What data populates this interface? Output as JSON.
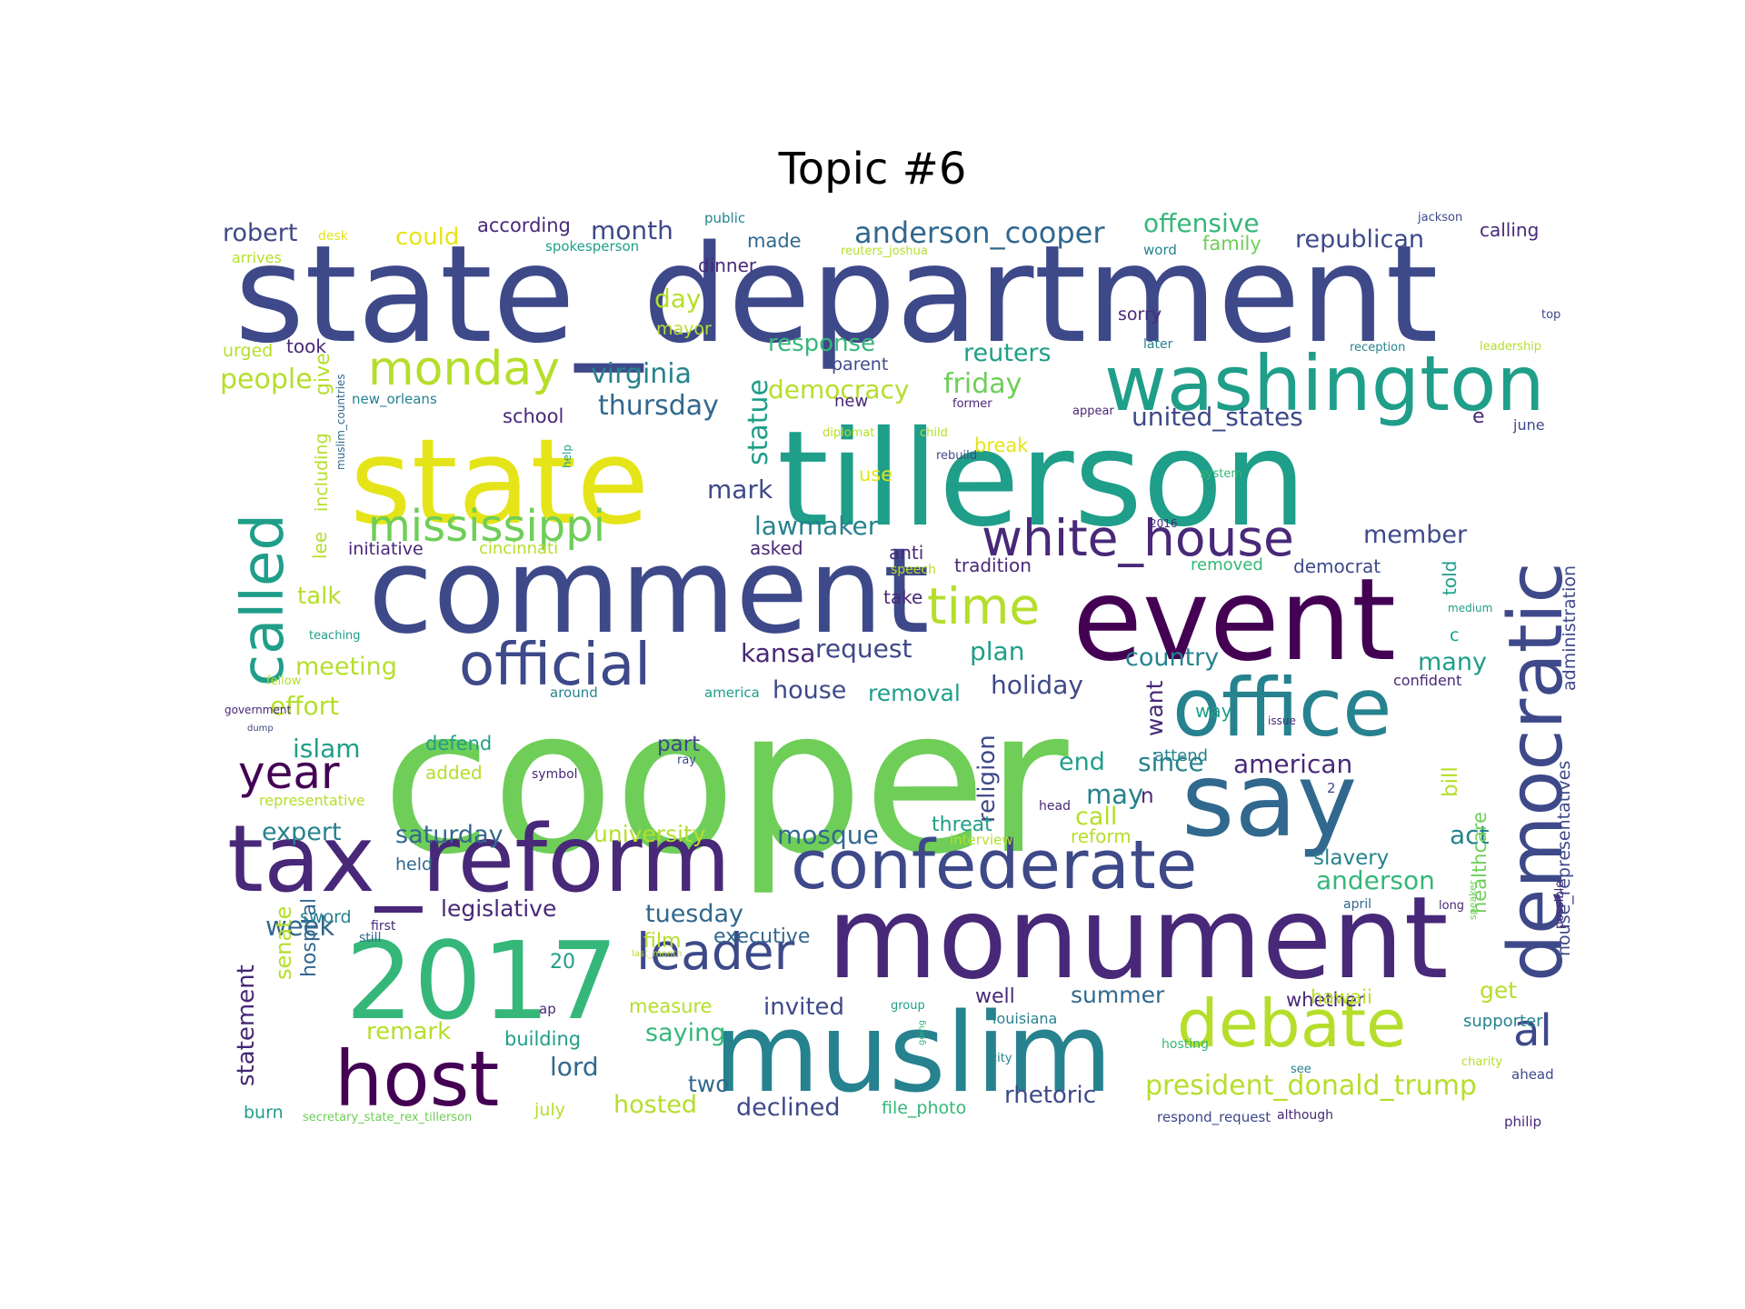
{
  "title": "Topic #6",
  "palette": {
    "darkpurple": "#440154",
    "purple": "#482878",
    "indigo": "#3e4989",
    "blue": "#31688e",
    "teal": "#26828e",
    "seagreen": "#1f9e89",
    "green": "#35b779",
    "lightgreen": "#6ece58",
    "lime": "#b5de2b",
    "yellow": "#e5e419"
  },
  "words": [
    {
      "text": "state_department",
      "color": "#3e4989"
    },
    {
      "text": "cooper",
      "color": "#6ece58"
    },
    {
      "text": "tillerson",
      "color": "#1f9e89"
    },
    {
      "text": "state",
      "color": "#e5e419"
    },
    {
      "text": "comment",
      "color": "#3e4989"
    },
    {
      "text": "event",
      "color": "#440154"
    },
    {
      "text": "monument",
      "color": "#482878"
    },
    {
      "text": "muslim",
      "color": "#26828e"
    },
    {
      "text": "2017",
      "color": "#35b779"
    },
    {
      "text": "tax_reform",
      "color": "#482878"
    },
    {
      "text": "say",
      "color": "#31688e"
    },
    {
      "text": "office",
      "color": "#26828e"
    },
    {
      "text": "washington",
      "color": "#1f9e89"
    },
    {
      "text": "democratic",
      "color": "#3e4989"
    },
    {
      "text": "called",
      "color": "#1f9e89"
    },
    {
      "text": "confederate",
      "color": "#3e4989"
    },
    {
      "text": "debate",
      "color": "#b5de2b"
    },
    {
      "text": "host",
      "color": "#440154"
    },
    {
      "text": "official",
      "color": "#3e4989"
    },
    {
      "text": "white_house",
      "color": "#482878"
    },
    {
      "text": "mississippi",
      "color": "#6ece58"
    },
    {
      "text": "monday",
      "color": "#b5de2b"
    },
    {
      "text": "time",
      "color": "#b5de2b"
    },
    {
      "text": "leader",
      "color": "#3e4989"
    },
    {
      "text": "year",
      "color": "#440154"
    },
    {
      "text": "anderson_cooper",
      "color": "#31688e"
    },
    {
      "text": "al",
      "color": "#3e4989"
    },
    {
      "text": "president_donald_trump",
      "color": "#b5de2b"
    },
    {
      "text": "republican",
      "color": "#3e4989"
    },
    {
      "text": "offensive",
      "color": "#35b779"
    },
    {
      "text": "virginia",
      "color": "#26828e"
    },
    {
      "text": "thursday",
      "color": "#31688e"
    },
    {
      "text": "united_states",
      "color": "#3e4989"
    },
    {
      "text": "friday",
      "color": "#6ece58"
    },
    {
      "text": "democracy",
      "color": "#b5de2b"
    },
    {
      "text": "reuters",
      "color": "#1f9e89"
    },
    {
      "text": "response",
      "color": "#35b779"
    },
    {
      "text": "people",
      "color": "#b5de2b"
    },
    {
      "text": "month",
      "color": "#3e4989"
    },
    {
      "text": "made",
      "color": "#31688e"
    },
    {
      "text": "day",
      "color": "#b5de2b"
    },
    {
      "text": "robert",
      "color": "#3e4989"
    },
    {
      "text": "could",
      "color": "#e5e419"
    },
    {
      "text": "according",
      "color": "#482878"
    },
    {
      "text": "family",
      "color": "#6ece58"
    },
    {
      "text": "calling",
      "color": "#482878"
    },
    {
      "text": "statue",
      "color": "#1f9e89"
    },
    {
      "text": "lawmaker",
      "color": "#26828e"
    },
    {
      "text": "mark",
      "color": "#3e4989"
    },
    {
      "text": "member",
      "color": "#3e4989"
    },
    {
      "text": "plan",
      "color": "#1f9e89"
    },
    {
      "text": "request",
      "color": "#3e4989"
    },
    {
      "text": "kansa",
      "color": "#482878"
    },
    {
      "text": "country",
      "color": "#26828e"
    },
    {
      "text": "many",
      "color": "#1f9e89"
    },
    {
      "text": "holiday",
      "color": "#3e4989"
    },
    {
      "text": "house",
      "color": "#3e4989"
    },
    {
      "text": "removal",
      "color": "#1f9e89"
    },
    {
      "text": "meeting",
      "color": "#b5de2b"
    },
    {
      "text": "effort",
      "color": "#b5de2b"
    },
    {
      "text": "talk",
      "color": "#b5de2b"
    },
    {
      "text": "islam",
      "color": "#1f9e89"
    },
    {
      "text": "end",
      "color": "#1f9e89"
    },
    {
      "text": "since",
      "color": "#26828e"
    },
    {
      "text": "american",
      "color": "#482878"
    },
    {
      "text": "may",
      "color": "#26828e"
    },
    {
      "text": "expert",
      "color": "#26828e"
    },
    {
      "text": "saturday",
      "color": "#31688e"
    },
    {
      "text": "university",
      "color": "#b5de2b"
    },
    {
      "text": "mosque",
      "color": "#31688e"
    },
    {
      "text": "act",
      "color": "#26828e"
    },
    {
      "text": "anderson",
      "color": "#35b779"
    },
    {
      "text": "tuesday",
      "color": "#31688e"
    },
    {
      "text": "legislative",
      "color": "#482878"
    },
    {
      "text": "week",
      "color": "#31688e"
    },
    {
      "text": "executive",
      "color": "#31688e"
    },
    {
      "text": "summer",
      "color": "#31688e"
    },
    {
      "text": "invited",
      "color": "#3e4989"
    },
    {
      "text": "saying",
      "color": "#35b779"
    },
    {
      "text": "remark",
      "color": "#b5de2b"
    },
    {
      "text": "lord",
      "color": "#31688e"
    },
    {
      "text": "two",
      "color": "#31688e"
    },
    {
      "text": "hosted",
      "color": "#b5de2b"
    },
    {
      "text": "declined",
      "color": "#3e4989"
    },
    {
      "text": "rhetoric",
      "color": "#3e4989"
    },
    {
      "text": "get",
      "color": "#b5de2b"
    },
    {
      "text": "whether",
      "color": "#482878"
    },
    {
      "text": "religion",
      "color": "#3e4989"
    },
    {
      "text": "statement",
      "color": "#482878"
    },
    {
      "text": "senate",
      "color": "#b5de2b"
    },
    {
      "text": "hospital",
      "color": "#31688e"
    },
    {
      "text": "healthcare",
      "color": "#6ece58"
    },
    {
      "text": "house_representatives",
      "color": "#3e4989"
    },
    {
      "text": "administration",
      "color": "#3e4989"
    },
    {
      "text": "want",
      "color": "#482878"
    },
    {
      "text": "bill",
      "color": "#b5de2b"
    },
    {
      "text": "told",
      "color": "#1f9e89"
    },
    {
      "text": "lee",
      "color": "#b5de2b"
    },
    {
      "text": "including",
      "color": "#b5de2b"
    },
    {
      "text": "give",
      "color": "#b5de2b"
    },
    {
      "text": "initiative",
      "color": "#482878"
    },
    {
      "text": "cincinnati",
      "color": "#b5de2b"
    },
    {
      "text": "asked",
      "color": "#482878"
    },
    {
      "text": "anti",
      "color": "#482878"
    },
    {
      "text": "tradition",
      "color": "#482878"
    },
    {
      "text": "democrat",
      "color": "#3e4989"
    },
    {
      "text": "removed",
      "color": "#35b779"
    },
    {
      "text": "take",
      "color": "#482878"
    },
    {
      "text": "speech",
      "color": "#b5de2b"
    },
    {
      "text": "break",
      "color": "#e5e419"
    },
    {
      "text": "use",
      "color": "#e5e419"
    },
    {
      "text": "new_orleans",
      "color": "#26828e"
    },
    {
      "text": "school",
      "color": "#482878"
    },
    {
      "text": "new",
      "color": "#482878"
    },
    {
      "text": "parent",
      "color": "#3e4989"
    },
    {
      "text": "mayor",
      "color": "#b5de2b"
    },
    {
      "text": "took",
      "color": "#482878"
    },
    {
      "text": "urged",
      "color": "#b5de2b"
    },
    {
      "text": "sorry",
      "color": "#482878"
    },
    {
      "text": "dinner",
      "color": "#482878"
    },
    {
      "text": "spokesperson",
      "color": "#1f9e89"
    },
    {
      "text": "public",
      "color": "#26828e"
    },
    {
      "text": "word",
      "color": "#26828e"
    },
    {
      "text": "later",
      "color": "#26828e"
    },
    {
      "text": "e",
      "color": "#482878"
    },
    {
      "text": "call",
      "color": "#b5de2b"
    },
    {
      "text": "n",
      "color": "#482878"
    },
    {
      "text": "reform",
      "color": "#b5de2b"
    },
    {
      "text": "threat",
      "color": "#1f9e89"
    },
    {
      "text": "part",
      "color": "#3e4989"
    },
    {
      "text": "defend",
      "color": "#1f9e89"
    },
    {
      "text": "added",
      "color": "#b5de2b"
    },
    {
      "text": "attend",
      "color": "#26828e"
    },
    {
      "text": "way",
      "color": "#1f9e89"
    },
    {
      "text": "held",
      "color": "#31688e"
    },
    {
      "text": "sword",
      "color": "#26828e"
    },
    {
      "text": "film",
      "color": "#b5de2b"
    },
    {
      "text": "20",
      "color": "#1f9e89"
    },
    {
      "text": "measure",
      "color": "#b5de2b"
    },
    {
      "text": "building",
      "color": "#1f9e89"
    },
    {
      "text": "hawaii",
      "color": "#b5de2b"
    },
    {
      "text": "slavery",
      "color": "#26828e"
    },
    {
      "text": "well",
      "color": "#482878"
    },
    {
      "text": "louisiana",
      "color": "#26828e"
    },
    {
      "text": "hosting",
      "color": "#35b779"
    },
    {
      "text": "supporter",
      "color": "#26828e"
    },
    {
      "text": "burn",
      "color": "#1f9e89"
    },
    {
      "text": "july",
      "color": "#b5de2b"
    },
    {
      "text": "file_photo",
      "color": "#35b779"
    },
    {
      "text": "respond_request",
      "color": "#3e4989"
    },
    {
      "text": "although",
      "color": "#482878"
    },
    {
      "text": "philip",
      "color": "#482878"
    },
    {
      "text": "ahead",
      "color": "#3e4989"
    },
    {
      "text": "charity",
      "color": "#b5de2b"
    },
    {
      "text": "see",
      "color": "#26828e"
    },
    {
      "text": "city",
      "color": "#26828e"
    },
    {
      "text": "going",
      "color": "#35b779"
    },
    {
      "text": "group",
      "color": "#1f9e89"
    },
    {
      "text": "still",
      "color": "#31688e"
    },
    {
      "text": "ap",
      "color": "#482878"
    },
    {
      "text": "secretary_state_rex_tillerson",
      "color": "#6ece58"
    },
    {
      "text": "first",
      "color": "#482878"
    },
    {
      "text": "last_month",
      "color": "#b5de2b"
    },
    {
      "text": "possible",
      "color": "#482878"
    },
    {
      "text": "medium",
      "color": "#1f9e89"
    },
    {
      "text": "speaker",
      "color": "#6ece58"
    },
    {
      "text": "long",
      "color": "#482878"
    },
    {
      "text": "april",
      "color": "#31688e"
    },
    {
      "text": "confident",
      "color": "#482878"
    },
    {
      "text": "issue",
      "color": "#482878"
    },
    {
      "text": "2016",
      "color": "#482878"
    },
    {
      "text": "system",
      "color": "#35b779"
    },
    {
      "text": "c",
      "color": "#1f9e89"
    },
    {
      "text": "june",
      "color": "#3e4989"
    },
    {
      "text": "appear",
      "color": "#482878"
    },
    {
      "text": "former",
      "color": "#482878"
    },
    {
      "text": "rebuild",
      "color": "#3e4989"
    },
    {
      "text": "child",
      "color": "#b5de2b"
    },
    {
      "text": "diplomat",
      "color": "#b5de2b"
    },
    {
      "text": "help",
      "color": "#1f9e89"
    },
    {
      "text": "reception",
      "color": "#26828e"
    },
    {
      "text": "leadership",
      "color": "#b5de2b"
    },
    {
      "text": "top",
      "color": "#3e4989"
    },
    {
      "text": "jackson",
      "color": "#3e4989"
    },
    {
      "text": "reuters_joshua",
      "color": "#b5de2b"
    },
    {
      "text": "desk",
      "color": "#e5e419"
    },
    {
      "text": "arrives",
      "color": "#b5de2b"
    },
    {
      "text": "muslim_countries",
      "color": "#31688e"
    },
    {
      "text": "teaching",
      "color": "#1f9e89"
    },
    {
      "text": "fellow",
      "color": "#b5de2b"
    },
    {
      "text": "government",
      "color": "#482878"
    },
    {
      "text": "dump",
      "color": "#3e4989"
    },
    {
      "text": "representative",
      "color": "#b5de2b"
    },
    {
      "text": "symbol",
      "color": "#482878"
    },
    {
      "text": "ray",
      "color": "#3e4989"
    },
    {
      "text": "around",
      "color": "#26828e"
    },
    {
      "text": "america",
      "color": "#1f9e89"
    },
    {
      "text": "head",
      "color": "#482878"
    },
    {
      "text": "interview",
      "color": "#b5de2b"
    },
    {
      "text": "2",
      "color": "#3e4989"
    }
  ]
}
